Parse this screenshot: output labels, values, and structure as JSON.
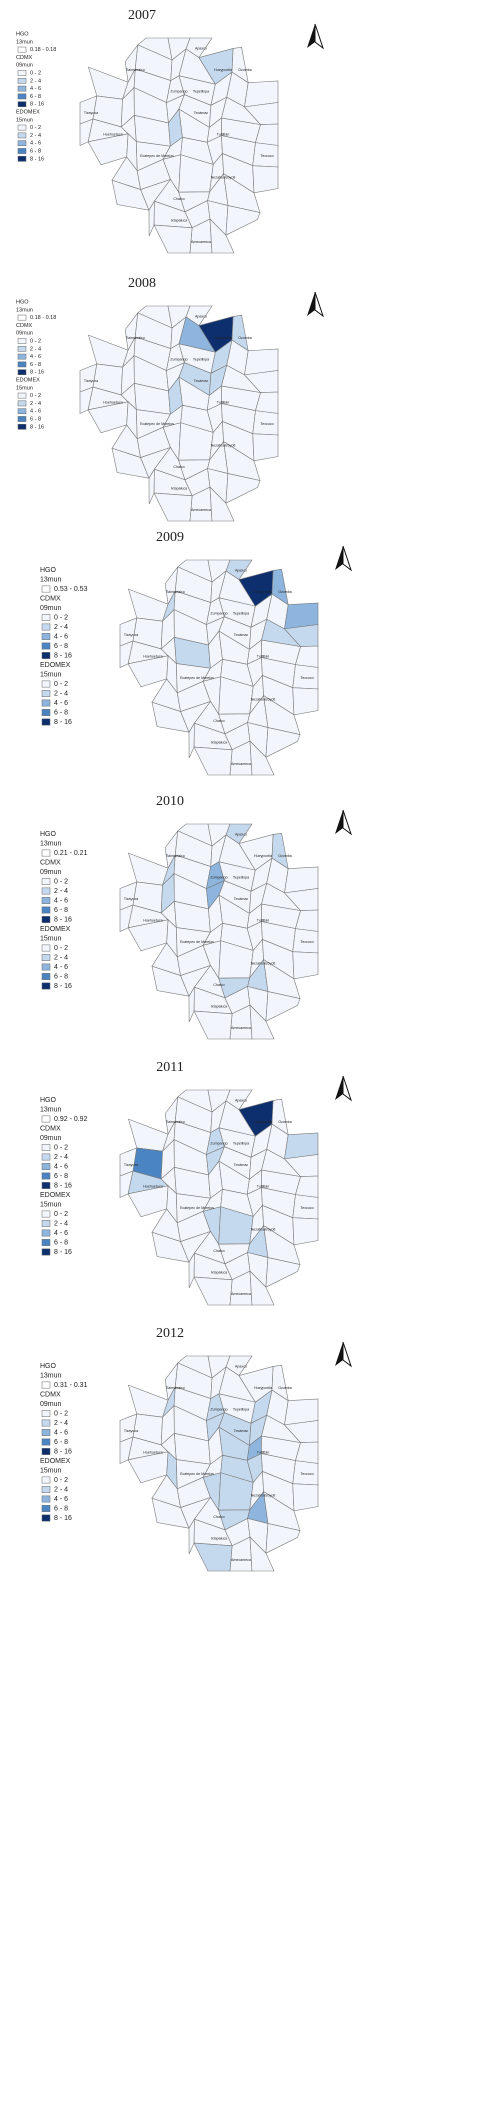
{
  "legend": {
    "hgo": "HGO",
    "hgo_sub": "13mun",
    "cdmx": "CDMX",
    "cdmx_sub": "09mun",
    "edomex": "EDOMEX",
    "edomex_sub": "15mun",
    "hgo_color": "#ffffff",
    "classes": [
      {
        "label": "0 - 2",
        "color": "#f2f6fc"
      },
      {
        "label": "2 - 4",
        "color": "#c5d9ee"
      },
      {
        "label": "4 - 6",
        "color": "#8db5dd"
      },
      {
        "label": "6 - 8",
        "color": "#4a84c3"
      },
      {
        "label": "8 - 16",
        "color": "#0d2f6e"
      }
    ]
  },
  "places": [
    "Apaxco",
    "Hueypoxtla",
    "Zumpango",
    "Tizayuca",
    "Tecámac",
    "Huehuetoca",
    "Tultitlán",
    "Ecatepec de Morelos",
    "Texcoco",
    "Nezahualcóyotl",
    "Chalco",
    "Ixtapaluca",
    "Amecameca",
    "Tlalmanalco",
    "Ozumba",
    "Tepetlixpa"
  ],
  "panels": [
    {
      "year": "2007",
      "hgo_range": "0.18 - 0.18",
      "shaded": [
        [
          7,
          1
        ],
        [
          30,
          1
        ]
      ]
    },
    {
      "year": "2008",
      "hgo_range": "0.18 - 0.18",
      "shaded": [
        [
          7,
          4
        ],
        [
          6,
          2
        ],
        [
          14,
          1
        ],
        [
          8,
          1
        ],
        [
          22,
          1
        ],
        [
          30,
          1
        ],
        [
          23,
          1
        ]
      ]
    },
    {
      "year": "2009",
      "hgo_range": "0.53 - 0.53",
      "shaded": [
        [
          7,
          4
        ],
        [
          8,
          2
        ],
        [
          16,
          2
        ],
        [
          24,
          1
        ],
        [
          10,
          1
        ],
        [
          2,
          1
        ],
        [
          29,
          1
        ],
        [
          25,
          1
        ]
      ]
    },
    {
      "year": "2010",
      "hgo_range": "0.21 - 0.21",
      "shaded": [
        [
          10,
          1
        ],
        [
          12,
          2
        ],
        [
          21,
          2
        ],
        [
          19,
          1
        ],
        [
          8,
          1
        ],
        [
          53,
          1
        ],
        [
          54,
          1
        ],
        [
          2,
          1
        ]
      ]
    },
    {
      "year": "2011",
      "hgo_range": "0.92 - 0.92",
      "shaded": [
        [
          7,
          4
        ],
        [
          18,
          3
        ],
        [
          27,
          1
        ],
        [
          12,
          1
        ],
        [
          21,
          1
        ],
        [
          45,
          1
        ],
        [
          46,
          1
        ],
        [
          54,
          1
        ],
        [
          16,
          1
        ]
      ]
    },
    {
      "year": "2012",
      "hgo_range": "0.31 - 0.31",
      "shaded": [
        [
          10,
          1
        ],
        [
          12,
          1
        ],
        [
          14,
          1
        ],
        [
          21,
          1
        ],
        [
          22,
          1
        ],
        [
          23,
          1
        ],
        [
          31,
          1
        ],
        [
          32,
          2
        ],
        [
          39,
          1
        ],
        [
          40,
          1
        ],
        [
          45,
          1
        ],
        [
          46,
          1
        ],
        [
          53,
          1
        ],
        [
          54,
          2
        ],
        [
          61,
          1
        ],
        [
          36,
          1
        ]
      ]
    }
  ]
}
